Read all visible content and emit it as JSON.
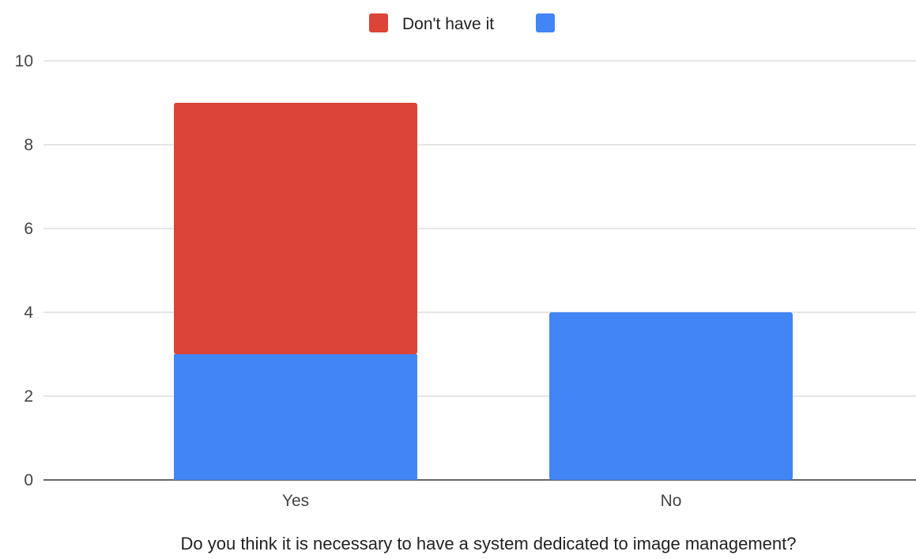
{
  "chart_data": {
    "type": "bar",
    "stacked": true,
    "categories": [
      "Yes",
      "No"
    ],
    "series": [
      {
        "name": "",
        "color": "#4285f4",
        "values": [
          3,
          4
        ]
      },
      {
        "name": "Don't have it",
        "color": "#db4437",
        "values": [
          6,
          0
        ]
      }
    ],
    "legend": {
      "position": "top-center",
      "entries": [
        {
          "label": "Don't have it",
          "color": "#db4437"
        },
        {
          "label": "",
          "color": "#4285f4"
        }
      ]
    },
    "title": "",
    "xlabel": "Do you think it is necessary to have a system dedicated to image management?",
    "ylabel": "",
    "ylim": [
      0,
      10
    ],
    "yticks": [
      0,
      2,
      4,
      6,
      8,
      10
    ],
    "grid": true
  }
}
